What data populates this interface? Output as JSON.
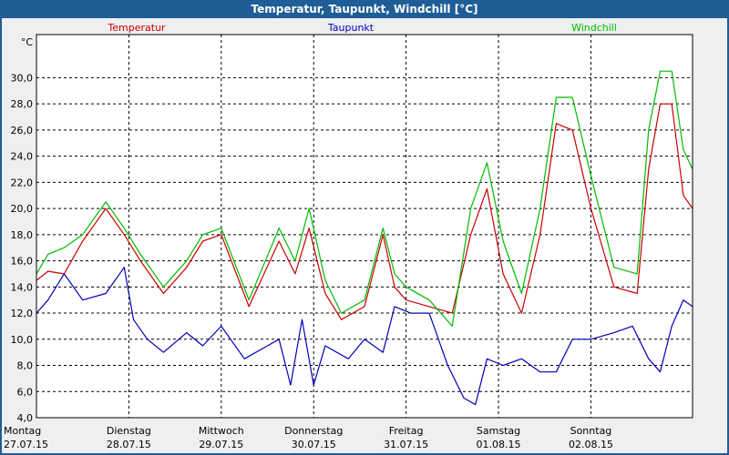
{
  "window": {
    "title": "Temperatur, Taupunkt, Windchill [°C]"
  },
  "chart_data": {
    "type": "line",
    "title": "Temperatur, Taupunkt, Windchill [°C]",
    "ylabel": "°C",
    "ylim": [
      4,
      33.3
    ],
    "xlim": [
      0,
      2.84
    ],
    "grid": true,
    "yticks": [
      "4,0",
      "6,0",
      "8,0",
      "10,0",
      "12,0",
      "14,0",
      "16,0",
      "18,0",
      "20,0",
      "22,0",
      "24,0",
      "26,0",
      "28,0",
      "30,0"
    ],
    "days": [
      {
        "name": "Montag",
        "date": "27.07.15"
      },
      {
        "name": "Dienstag",
        "date": "28.07.15"
      },
      {
        "name": "Mittwoch",
        "date": "29.07.15"
      },
      {
        "name": "Donnerstag",
        "date": "30.07.15"
      },
      {
        "name": "Freitag",
        "date": "31.07.15"
      },
      {
        "name": "Samstag",
        "date": "01.08.15"
      },
      {
        "name": "Sonntag",
        "date": "02.08.15"
      }
    ],
    "series": [
      {
        "name": "Temperatur",
        "color": "#cc0000",
        "x": [
          0,
          0.05,
          0.12,
          0.2,
          0.3,
          0.38,
          0.45,
          0.55,
          0.65,
          0.72,
          0.8,
          0.92,
          1.05,
          1.12,
          1.18,
          1.25,
          1.32,
          1.42,
          1.5,
          1.55,
          1.6,
          1.7,
          1.8,
          1.88,
          1.95,
          2.02,
          2.1,
          2.18,
          2.25,
          2.32,
          2.4,
          2.5,
          2.6,
          2.65,
          2.7,
          2.75,
          2.8,
          2.84
        ],
        "values": [
          14.5,
          15.2,
          15.0,
          17.5,
          20.0,
          18.0,
          16.0,
          13.5,
          15.5,
          17.5,
          18.0,
          12.5,
          17.5,
          15.0,
          18.5,
          13.5,
          11.5,
          12.5,
          18.0,
          14.0,
          13.0,
          12.5,
          12.0,
          18.0,
          21.5,
          15.0,
          12.0,
          18.0,
          26.5,
          26.0,
          20.0,
          14.0,
          13.5,
          23.0,
          28.0,
          28.0,
          21.0,
          20.0
        ]
      },
      {
        "name": "Taupunkt",
        "color": "#0000bb",
        "x": [
          0,
          0.05,
          0.12,
          0.2,
          0.3,
          0.38,
          0.42,
          0.48,
          0.55,
          0.65,
          0.72,
          0.8,
          0.9,
          1.0,
          1.05,
          1.1,
          1.15,
          1.2,
          1.25,
          1.35,
          1.42,
          1.5,
          1.55,
          1.62,
          1.7,
          1.78,
          1.85,
          1.9,
          1.95,
          2.02,
          2.1,
          2.18,
          2.25,
          2.32,
          2.4,
          2.5,
          2.58,
          2.65,
          2.7,
          2.75,
          2.8,
          2.84
        ],
        "values": [
          12.0,
          13.0,
          15.0,
          13.0,
          13.5,
          15.5,
          11.5,
          10.0,
          9.0,
          10.5,
          9.5,
          11.0,
          8.5,
          9.5,
          10.0,
          6.5,
          11.5,
          6.5,
          9.5,
          8.5,
          10.0,
          9.0,
          12.5,
          12.0,
          12.0,
          8.0,
          5.5,
          5.0,
          8.5,
          8.0,
          8.5,
          7.5,
          7.5,
          10.0,
          10.0,
          10.5,
          11.0,
          8.5,
          7.5,
          11.0,
          13.0,
          12.5
        ]
      },
      {
        "name": "Windchill",
        "color": "#00bb00",
        "x": [
          0,
          0.05,
          0.12,
          0.2,
          0.3,
          0.38,
          0.45,
          0.55,
          0.65,
          0.72,
          0.8,
          0.92,
          1.05,
          1.12,
          1.18,
          1.25,
          1.32,
          1.42,
          1.5,
          1.55,
          1.6,
          1.7,
          1.8,
          1.88,
          1.95,
          2.02,
          2.1,
          2.18,
          2.25,
          2.32,
          2.4,
          2.5,
          2.6,
          2.65,
          2.7,
          2.75,
          2.8,
          2.84
        ],
        "values": [
          15.0,
          16.5,
          17.0,
          18.0,
          20.5,
          18.5,
          16.5,
          14.0,
          16.0,
          18.0,
          18.5,
          13.0,
          18.5,
          16.0,
          20.0,
          14.5,
          12.0,
          13.0,
          18.5,
          15.0,
          14.0,
          13.0,
          11.0,
          20.0,
          23.5,
          17.5,
          13.5,
          20.0,
          28.5,
          28.5,
          22.5,
          15.5,
          15.0,
          26.0,
          30.5,
          30.5,
          24.5,
          23.0
        ]
      }
    ]
  }
}
